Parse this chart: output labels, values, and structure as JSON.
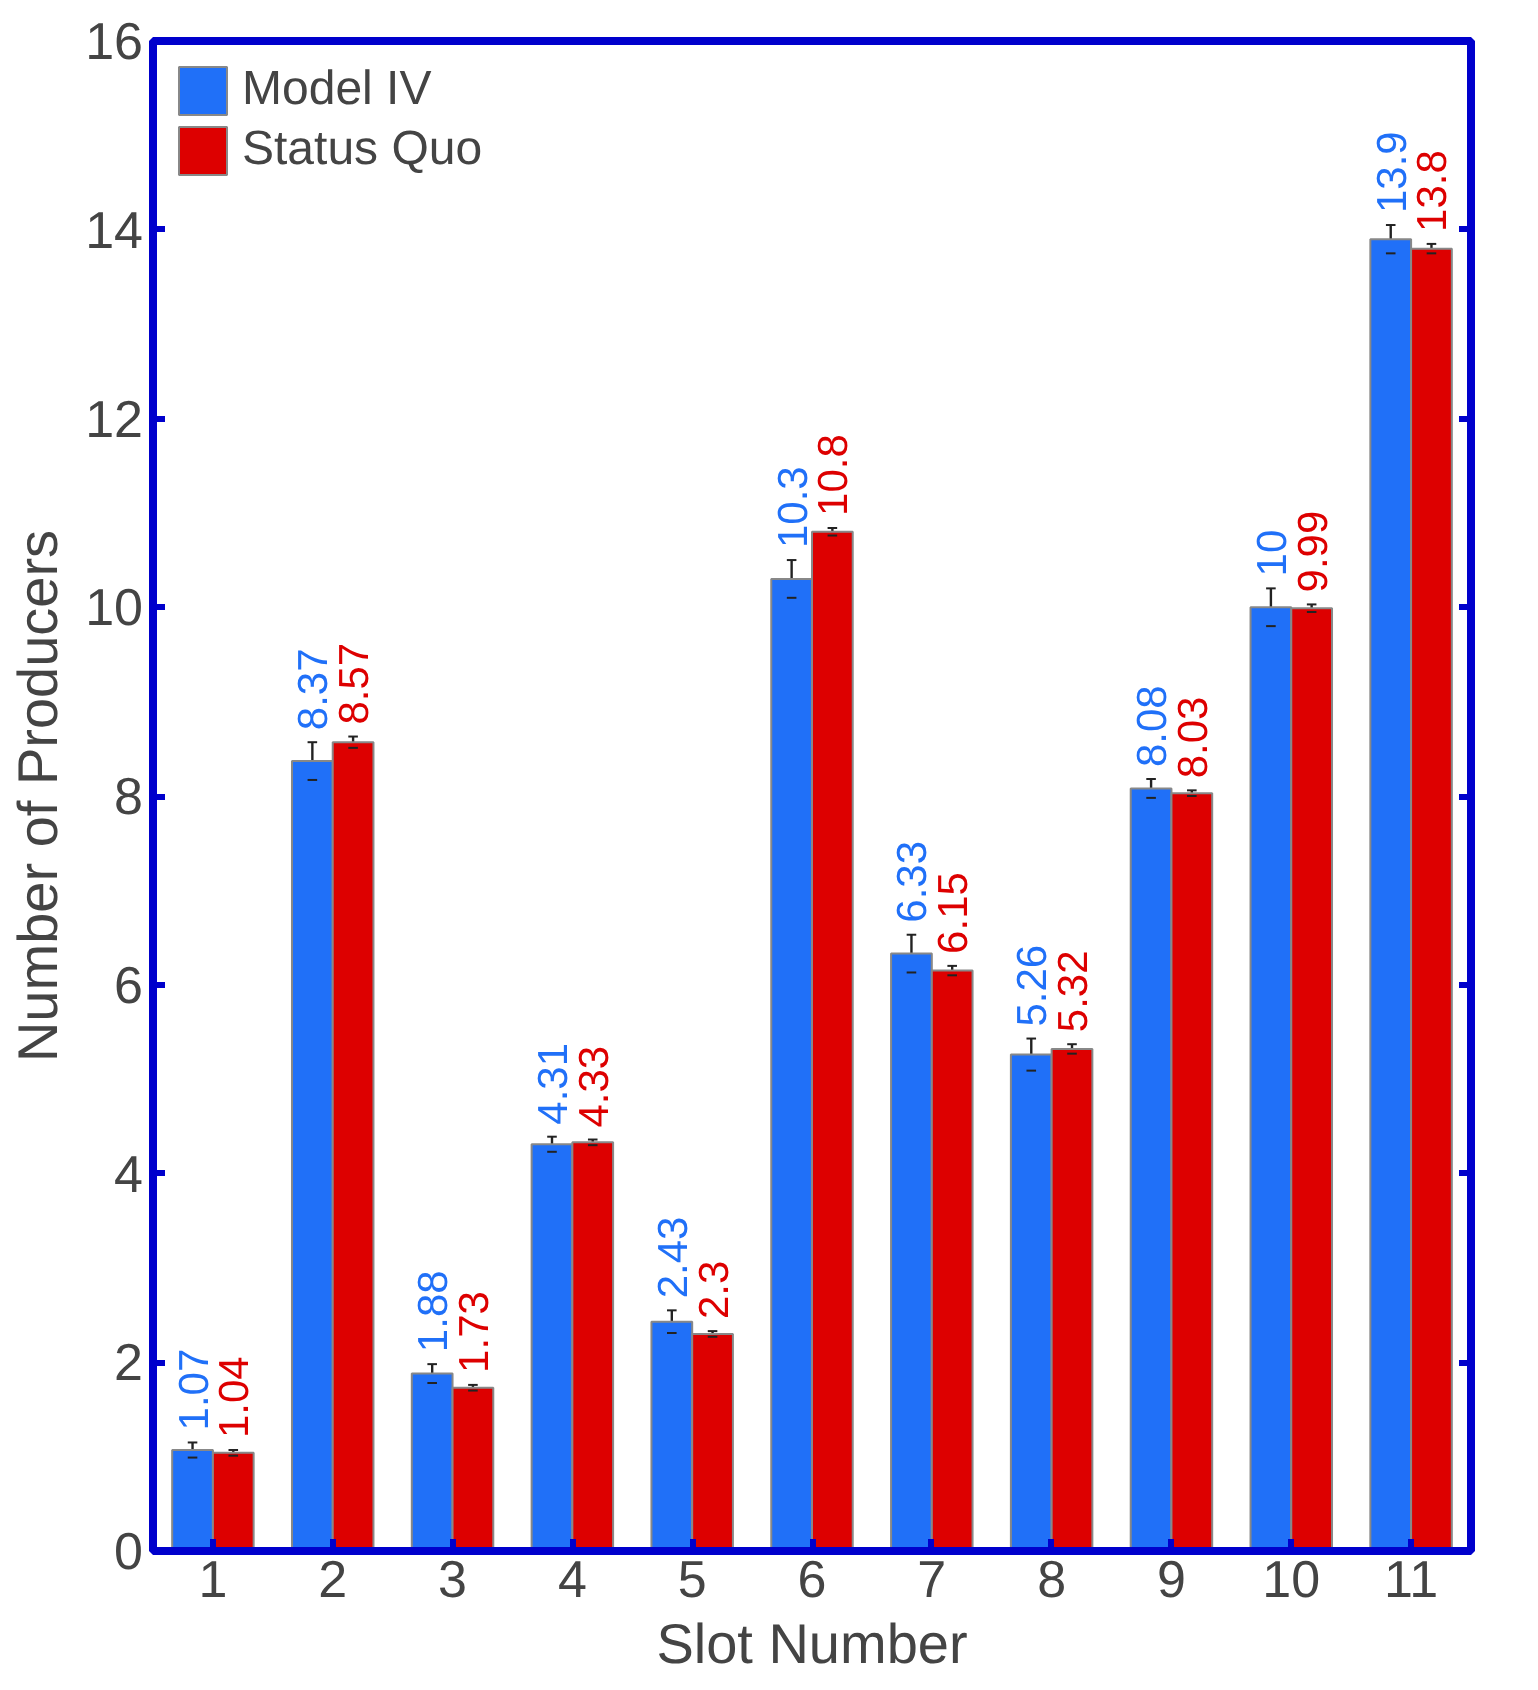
{
  "chart_data": {
    "type": "bar",
    "xlabel": "Slot Number",
    "ylabel": "Number of Producers",
    "categories": [
      "1",
      "2",
      "3",
      "4",
      "5",
      "6",
      "7",
      "8",
      "9",
      "10",
      "11"
    ],
    "ylim": [
      0,
      16
    ],
    "yticks": [
      0,
      2,
      4,
      6,
      8,
      10,
      12,
      14,
      16
    ],
    "series": [
      {
        "name": "Model IV",
        "color": "#2070f8",
        "values": [
          1.07,
          8.37,
          1.88,
          4.31,
          2.43,
          10.3,
          6.33,
          5.26,
          8.08,
          10,
          13.9
        ],
        "errors": [
          0.08,
          0.2,
          0.1,
          0.08,
          0.12,
          0.2,
          0.2,
          0.17,
          0.1,
          0.2,
          0.15
        ]
      },
      {
        "name": "Status Quo",
        "color": "#dd0000",
        "values": [
          1.04,
          8.57,
          1.73,
          4.33,
          2.3,
          10.8,
          6.15,
          5.32,
          8.03,
          9.99,
          13.8
        ],
        "errors": [
          0.03,
          0.06,
          0.03,
          0.03,
          0.03,
          0.04,
          0.05,
          0.05,
          0.03,
          0.04,
          0.05
        ]
      }
    ],
    "data_labels": true,
    "legend": "top left",
    "grid": false
  }
}
